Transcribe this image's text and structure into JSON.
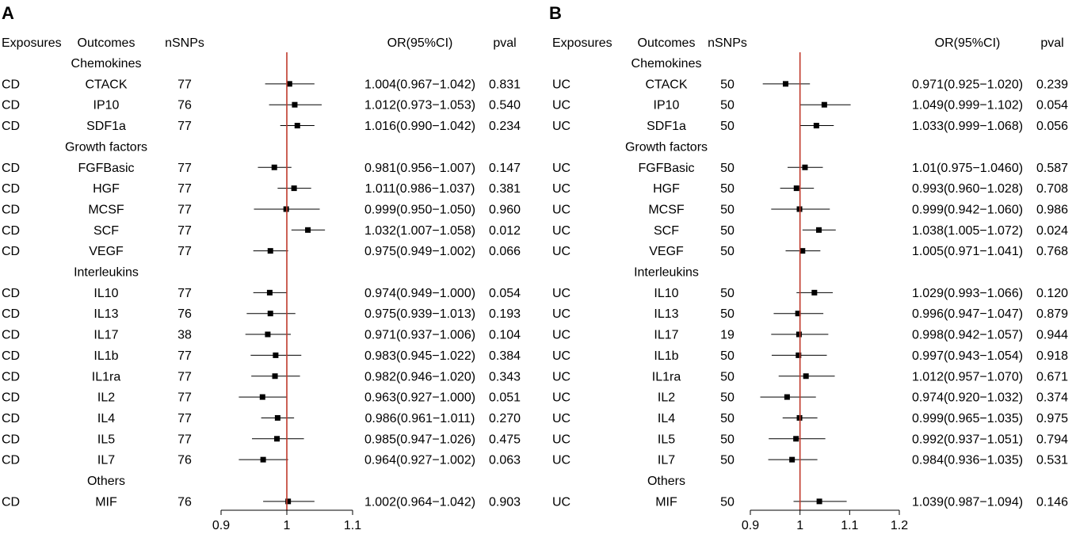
{
  "chart_data": [
    {
      "type": "forest",
      "panel_label": "A",
      "headers": {
        "exposures": "Exposures",
        "outcomes": "Outcomes",
        "nsnps": "nSNPs",
        "or": "OR(95%CI)",
        "pval": "pval"
      },
      "xticks": [
        0.9,
        1,
        1.1
      ],
      "xtick_labels": [
        "0.9",
        "1",
        "1.1"
      ],
      "xlim": [
        0.9,
        1.1
      ],
      "reference_line": 1,
      "colors": {
        "reference_line": "#c0392b",
        "marker": "#000000",
        "axis": "#000000"
      },
      "groups": [
        {
          "name": "Chemokines",
          "rows": [
            {
              "exposure": "CD",
              "outcome": "CTACK",
              "nsnps": "77",
              "or": 1.004,
              "lo": 0.967,
              "hi": 1.042,
              "or_text": "1.004(0.967−1.042)",
              "pval": "0.831"
            },
            {
              "exposure": "CD",
              "outcome": "IP10",
              "nsnps": "76",
              "or": 1.012,
              "lo": 0.973,
              "hi": 1.053,
              "or_text": "1.012(0.973−1.053)",
              "pval": "0.540"
            },
            {
              "exposure": "CD",
              "outcome": "SDF1a",
              "nsnps": "77",
              "or": 1.016,
              "lo": 0.99,
              "hi": 1.042,
              "or_text": "1.016(0.990−1.042)",
              "pval": "0.234"
            }
          ]
        },
        {
          "name": "Growth factors",
          "rows": [
            {
              "exposure": "CD",
              "outcome": "FGFBasic",
              "nsnps": "77",
              "or": 0.981,
              "lo": 0.956,
              "hi": 1.007,
              "or_text": "0.981(0.956−1.007)",
              "pval": "0.147"
            },
            {
              "exposure": "CD",
              "outcome": "HGF",
              "nsnps": "77",
              "or": 1.011,
              "lo": 0.986,
              "hi": 1.037,
              "or_text": "1.011(0.986−1.037)",
              "pval": "0.381"
            },
            {
              "exposure": "CD",
              "outcome": "MCSF",
              "nsnps": "77",
              "or": 0.999,
              "lo": 0.95,
              "hi": 1.05,
              "or_text": "0.999(0.950−1.050)",
              "pval": "0.960"
            },
            {
              "exposure": "CD",
              "outcome": "SCF",
              "nsnps": "77",
              "or": 1.032,
              "lo": 1.007,
              "hi": 1.058,
              "or_text": "1.032(1.007−1.058)",
              "pval": "0.012"
            },
            {
              "exposure": "CD",
              "outcome": "VEGF",
              "nsnps": "77",
              "or": 0.975,
              "lo": 0.949,
              "hi": 1.002,
              "or_text": "0.975(0.949−1.002)",
              "pval": "0.066"
            }
          ]
        },
        {
          "name": "Interleukins",
          "rows": [
            {
              "exposure": "CD",
              "outcome": "IL10",
              "nsnps": "77",
              "or": 0.974,
              "lo": 0.949,
              "hi": 1.0,
              "or_text": "0.974(0.949−1.000)",
              "pval": "0.054"
            },
            {
              "exposure": "CD",
              "outcome": "IL13",
              "nsnps": "76",
              "or": 0.975,
              "lo": 0.939,
              "hi": 1.013,
              "or_text": "0.975(0.939−1.013)",
              "pval": "0.193"
            },
            {
              "exposure": "CD",
              "outcome": "IL17",
              "nsnps": "38",
              "or": 0.971,
              "lo": 0.937,
              "hi": 1.006,
              "or_text": "0.971(0.937−1.006)",
              "pval": "0.104"
            },
            {
              "exposure": "CD",
              "outcome": "IL1b",
              "nsnps": "77",
              "or": 0.983,
              "lo": 0.945,
              "hi": 1.022,
              "or_text": "0.983(0.945−1.022)",
              "pval": "0.384"
            },
            {
              "exposure": "CD",
              "outcome": "IL1ra",
              "nsnps": "77",
              "or": 0.982,
              "lo": 0.946,
              "hi": 1.02,
              "or_text": "0.982(0.946−1.020)",
              "pval": "0.343"
            },
            {
              "exposure": "CD",
              "outcome": "IL2",
              "nsnps": "77",
              "or": 0.963,
              "lo": 0.927,
              "hi": 1.0,
              "or_text": "0.963(0.927−1.000)",
              "pval": "0.051"
            },
            {
              "exposure": "CD",
              "outcome": "IL4",
              "nsnps": "77",
              "or": 0.986,
              "lo": 0.961,
              "hi": 1.011,
              "or_text": "0.986(0.961−1.011)",
              "pval": "0.270"
            },
            {
              "exposure": "CD",
              "outcome": "IL5",
              "nsnps": "77",
              "or": 0.985,
              "lo": 0.947,
              "hi": 1.026,
              "or_text": "0.985(0.947−1.026)",
              "pval": "0.475"
            },
            {
              "exposure": "CD",
              "outcome": "IL7",
              "nsnps": "76",
              "or": 0.964,
              "lo": 0.927,
              "hi": 1.002,
              "or_text": "0.964(0.927−1.002)",
              "pval": "0.063"
            }
          ]
        },
        {
          "name": "Others",
          "rows": [
            {
              "exposure": "CD",
              "outcome": "MIF",
              "nsnps": "76",
              "or": 1.002,
              "lo": 0.964,
              "hi": 1.042,
              "or_text": "1.002(0.964−1.042)",
              "pval": "0.903"
            }
          ]
        }
      ]
    },
    {
      "type": "forest",
      "panel_label": "B",
      "headers": {
        "exposures": "Exposures",
        "outcomes": "Outcomes",
        "nsnps": "nSNPs",
        "or": "OR(95%CI)",
        "pval": "pval"
      },
      "xticks": [
        0.9,
        1,
        1.1,
        1.2
      ],
      "xtick_labels": [
        "0.9",
        "1",
        "1.1",
        "1.2"
      ],
      "xlim": [
        0.9,
        1.2
      ],
      "reference_line": 1,
      "colors": {
        "reference_line": "#c0392b",
        "marker": "#000000",
        "axis": "#000000"
      },
      "groups": [
        {
          "name": "Chemokines",
          "rows": [
            {
              "exposure": "UC",
              "outcome": "CTACK",
              "nsnps": "50",
              "or": 0.971,
              "lo": 0.925,
              "hi": 1.02,
              "or_text": "0.971(0.925−1.020)",
              "pval": "0.239"
            },
            {
              "exposure": "UC",
              "outcome": "IP10",
              "nsnps": "50",
              "or": 1.049,
              "lo": 0.999,
              "hi": 1.102,
              "or_text": "1.049(0.999−1.102)",
              "pval": "0.054"
            },
            {
              "exposure": "UC",
              "outcome": "SDF1a",
              "nsnps": "50",
              "or": 1.033,
              "lo": 0.999,
              "hi": 1.068,
              "or_text": "1.033(0.999−1.068)",
              "pval": "0.056"
            }
          ]
        },
        {
          "name": "Growth factors",
          "rows": [
            {
              "exposure": "UC",
              "outcome": "FGFBasic",
              "nsnps": "50",
              "or": 1.01,
              "lo": 0.975,
              "hi": 1.046,
              "or_text": "1.01(0.975−1.0460)",
              "pval": "0.587"
            },
            {
              "exposure": "UC",
              "outcome": "HGF",
              "nsnps": "50",
              "or": 0.993,
              "lo": 0.96,
              "hi": 1.028,
              "or_text": "0.993(0.960−1.028)",
              "pval": "0.708"
            },
            {
              "exposure": "UC",
              "outcome": "MCSF",
              "nsnps": "50",
              "or": 0.999,
              "lo": 0.942,
              "hi": 1.06,
              "or_text": "0.999(0.942−1.060)",
              "pval": "0.986"
            },
            {
              "exposure": "UC",
              "outcome": "SCF",
              "nsnps": "50",
              "or": 1.038,
              "lo": 1.005,
              "hi": 1.072,
              "or_text": "1.038(1.005−1.072)",
              "pval": "0.024"
            },
            {
              "exposure": "UC",
              "outcome": "VEGF",
              "nsnps": "50",
              "or": 1.005,
              "lo": 0.971,
              "hi": 1.041,
              "or_text": "1.005(0.971−1.041)",
              "pval": "0.768"
            }
          ]
        },
        {
          "name": "Interleukins",
          "rows": [
            {
              "exposure": "UC",
              "outcome": "IL10",
              "nsnps": "50",
              "or": 1.029,
              "lo": 0.993,
              "hi": 1.066,
              "or_text": "1.029(0.993−1.066)",
              "pval": "0.120"
            },
            {
              "exposure": "UC",
              "outcome": "IL13",
              "nsnps": "50",
              "or": 0.996,
              "lo": 0.947,
              "hi": 1.047,
              "or_text": "0.996(0.947−1.047)",
              "pval": "0.879"
            },
            {
              "exposure": "UC",
              "outcome": "IL17",
              "nsnps": "19",
              "or": 0.998,
              "lo": 0.942,
              "hi": 1.057,
              "or_text": "0.998(0.942−1.057)",
              "pval": "0.944"
            },
            {
              "exposure": "UC",
              "outcome": "IL1b",
              "nsnps": "50",
              "or": 0.997,
              "lo": 0.943,
              "hi": 1.054,
              "or_text": "0.997(0.943−1.054)",
              "pval": "0.918"
            },
            {
              "exposure": "UC",
              "outcome": "IL1ra",
              "nsnps": "50",
              "or": 1.012,
              "lo": 0.957,
              "hi": 1.07,
              "or_text": "1.012(0.957−1.070)",
              "pval": "0.671"
            },
            {
              "exposure": "UC",
              "outcome": "IL2",
              "nsnps": "50",
              "or": 0.974,
              "lo": 0.92,
              "hi": 1.032,
              "or_text": "0.974(0.920−1.032)",
              "pval": "0.374"
            },
            {
              "exposure": "UC",
              "outcome": "IL4",
              "nsnps": "50",
              "or": 0.999,
              "lo": 0.965,
              "hi": 1.035,
              "or_text": "0.999(0.965−1.035)",
              "pval": "0.975"
            },
            {
              "exposure": "UC",
              "outcome": "IL5",
              "nsnps": "50",
              "or": 0.992,
              "lo": 0.937,
              "hi": 1.051,
              "or_text": "0.992(0.937−1.051)",
              "pval": "0.794"
            },
            {
              "exposure": "UC",
              "outcome": "IL7",
              "nsnps": "50",
              "or": 0.984,
              "lo": 0.936,
              "hi": 1.035,
              "or_text": "0.984(0.936−1.035)",
              "pval": "0.531"
            }
          ]
        },
        {
          "name": "Others",
          "rows": [
            {
              "exposure": "UC",
              "outcome": "MIF",
              "nsnps": "50",
              "or": 1.039,
              "lo": 0.987,
              "hi": 1.094,
              "or_text": "1.039(0.987−1.094)",
              "pval": "0.146"
            }
          ]
        }
      ]
    }
  ]
}
